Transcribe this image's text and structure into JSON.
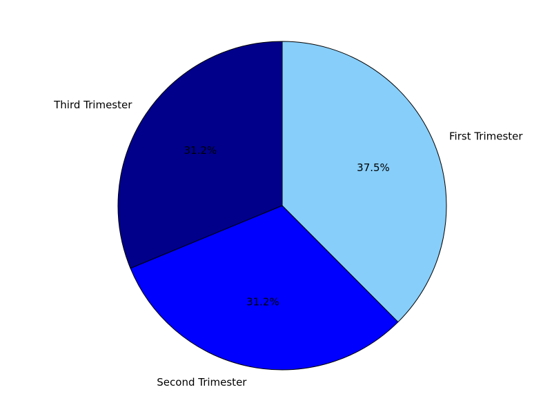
{
  "chart_data": {
    "type": "pie",
    "title": "",
    "start_angle_deg": 90,
    "direction": "clockwise",
    "slices": [
      {
        "label": "First Trimester",
        "value": 37.5,
        "pct_label": "37.5%",
        "color": "#87CEFA"
      },
      {
        "label": "Second Trimester",
        "value": 31.2,
        "pct_label": "31.2%",
        "color": "#0000FF"
      },
      {
        "label": "Third Trimester",
        "value": 31.2,
        "pct_label": "31.2%",
        "color": "#00008B"
      }
    ],
    "edge_color": "#000000"
  }
}
